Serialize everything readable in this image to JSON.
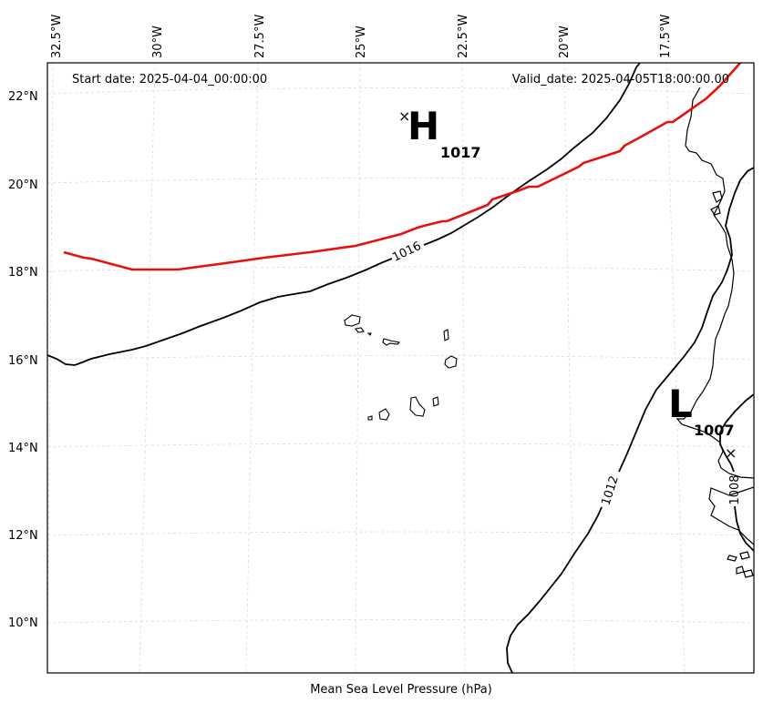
{
  "header": {
    "start_date": "Start date: 2025-04-04_00:00:00",
    "valid_date": "Valid_date: 2025-04-05T18:00:00.00"
  },
  "xlabel": "Mean Sea Level Pressure (hPa)",
  "longitude_ticks": [
    "32.5°W",
    "30°W",
    "27.5°W",
    "25°W",
    "22.5°W",
    "20°W",
    "17.5°W"
  ],
  "latitude_ticks": [
    "22°N",
    "20°N",
    "18°N",
    "16°N",
    "14°N",
    "12°N",
    "10°N"
  ],
  "systems": {
    "high": {
      "letter": "H",
      "value": "1017",
      "marker": "×"
    },
    "low": {
      "letter": "L",
      "value": "1007",
      "marker": "×"
    }
  },
  "isobar_labels": {
    "a": "1016",
    "b": "1012",
    "c": "1008"
  },
  "colors": {
    "front": "#e8100c",
    "isobar": "#000000",
    "grid": "#d9d9d9"
  },
  "chart_data": {
    "type": "map",
    "region": "Eastern tropical North Atlantic / West Africa (Cape Verde)",
    "isobar_levels_hPa": [
      1008,
      1012,
      1016
    ],
    "pressure_centers": [
      {
        "type": "H",
        "value_hPa": 1017
      },
      {
        "type": "L",
        "value_hPa": 1007
      }
    ],
    "extent": {
      "lon": [
        "33°W",
        "16°W"
      ],
      "lat": [
        "9°N",
        "23°N"
      ]
    }
  }
}
